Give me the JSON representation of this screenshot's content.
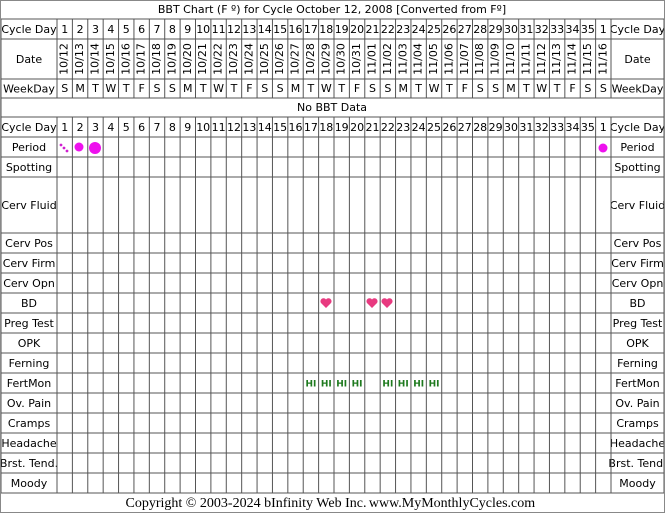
{
  "title": "BBT Chart (F º) for Cycle October 12, 2008  [Converted from Fº]",
  "header": {
    "cycle_day_label": "Cycle Day",
    "date_label": "Date",
    "weekday_label": "WeekDay",
    "cycle_days": [
      1,
      2,
      3,
      4,
      5,
      6,
      7,
      8,
      9,
      10,
      11,
      12,
      13,
      14,
      15,
      16,
      17,
      18,
      19,
      20,
      21,
      22,
      23,
      24,
      25,
      26,
      27,
      28,
      29,
      30,
      31,
      32,
      33,
      34,
      35,
      1
    ],
    "dates": [
      "10/12",
      "10/13",
      "10/14",
      "10/15",
      "10/16",
      "10/17",
      "10/18",
      "10/19",
      "10/20",
      "10/21",
      "10/22",
      "10/23",
      "10/24",
      "10/25",
      "10/26",
      "10/27",
      "10/28",
      "10/29",
      "10/30",
      "10/31",
      "11/01",
      "11/02",
      "11/03",
      "11/04",
      "11/05",
      "11/06",
      "11/07",
      "11/08",
      "11/09",
      "11/10",
      "11/11",
      "11/12",
      "11/13",
      "11/14",
      "11/15",
      "11/16"
    ],
    "weekdays": [
      "S",
      "M",
      "T",
      "W",
      "T",
      "F",
      "S",
      "S",
      "M",
      "T",
      "W",
      "T",
      "F",
      "S",
      "S",
      "M",
      "T",
      "W",
      "T",
      "F",
      "S",
      "S",
      "M",
      "T",
      "W",
      "T",
      "F",
      "S",
      "S",
      "M",
      "T",
      "W",
      "T",
      "F",
      "S",
      "S"
    ]
  },
  "no_data": "No BBT Data",
  "rows": [
    {
      "label": "Period"
    },
    {
      "label": "Spotting"
    },
    {
      "label": "Cerv Fluid"
    },
    {
      "label": "Cerv Pos"
    },
    {
      "label": "Cerv Firm"
    },
    {
      "label": "Cerv Opn"
    },
    {
      "label": "BD"
    },
    {
      "label": "Preg Test"
    },
    {
      "label": "OPK"
    },
    {
      "label": "Ferning"
    },
    {
      "label": "FertMon",
      "cells": [
        null,
        null,
        null,
        null,
        null,
        null,
        null,
        null,
        null,
        null,
        null,
        null,
        null,
        null,
        null,
        null,
        "HI",
        "HI",
        "HI",
        "HI",
        null,
        "HI",
        "HI",
        "HI",
        "HI",
        null,
        null,
        null,
        null,
        null,
        null,
        null,
        null,
        null,
        null,
        null
      ]
    },
    {
      "label": "Ov. Pain"
    },
    {
      "label": "Cramps"
    },
    {
      "label": "Headache"
    },
    {
      "label": "Brst. Tend."
    },
    {
      "label": "Moody"
    }
  ],
  "footer": {
    "copyright": "Copyright © 2003-2024 bInfinity Web Inc.",
    "site": "www.MyMonthlyCycles.com"
  }
}
